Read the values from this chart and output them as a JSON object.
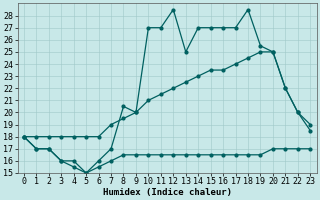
{
  "xlabel": "Humidex (Indice chaleur)",
  "xlim": [
    -0.5,
    23.5
  ],
  "ylim": [
    15,
    29
  ],
  "xticks": [
    0,
    1,
    2,
    3,
    4,
    5,
    6,
    7,
    8,
    9,
    10,
    11,
    12,
    13,
    14,
    15,
    16,
    17,
    18,
    19,
    20,
    21,
    22,
    23
  ],
  "yticks": [
    15,
    16,
    17,
    18,
    19,
    20,
    21,
    22,
    23,
    24,
    25,
    26,
    27,
    28
  ],
  "bg_color": "#c8e8e8",
  "line_color": "#006060",
  "line1_x": [
    0,
    1,
    2,
    3,
    4,
    5,
    6,
    7,
    8,
    9,
    10,
    11,
    12,
    13,
    14,
    15,
    16,
    17,
    18,
    19,
    20,
    21,
    22,
    23
  ],
  "line1_y": [
    18,
    17,
    17,
    16,
    15.5,
    15,
    16,
    17,
    20.5,
    20,
    27,
    27,
    28.5,
    25,
    27,
    27,
    27,
    27,
    28.5,
    25.5,
    25,
    22,
    20,
    18.5
  ],
  "line2_x": [
    0,
    1,
    2,
    3,
    4,
    5,
    6,
    7,
    8,
    9,
    10,
    11,
    12,
    13,
    14,
    15,
    16,
    17,
    18,
    19,
    20,
    21,
    22,
    23
  ],
  "line2_y": [
    18,
    18,
    18,
    18,
    18,
    18,
    18,
    19,
    19.5,
    20,
    21,
    21.5,
    22,
    22.5,
    23,
    23.5,
    23.5,
    24,
    24.5,
    25,
    25,
    22,
    20,
    19
  ],
  "line3_x": [
    0,
    1,
    2,
    3,
    4,
    5,
    6,
    7,
    8,
    9,
    10,
    11,
    12,
    13,
    14,
    15,
    16,
    17,
    18,
    19,
    20,
    21,
    22,
    23
  ],
  "line3_y": [
    18,
    17,
    17,
    16,
    16,
    15,
    15.5,
    16,
    16.5,
    16.5,
    16.5,
    16.5,
    16.5,
    16.5,
    16.5,
    16.5,
    16.5,
    16.5,
    16.5,
    16.5,
    17,
    17,
    17,
    17
  ],
  "font_size": 6.5,
  "tick_font_size": 6
}
